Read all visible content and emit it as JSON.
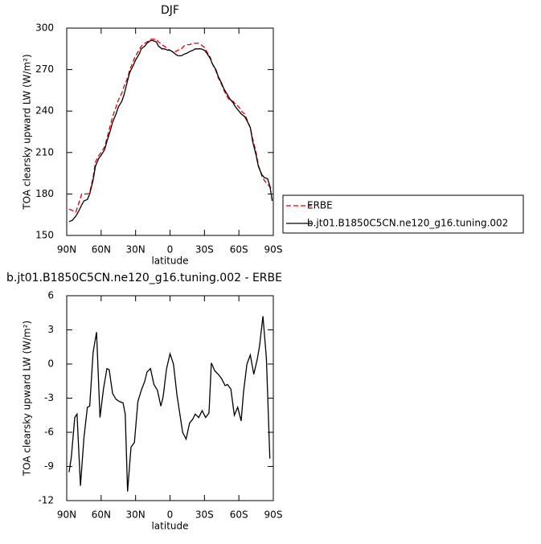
{
  "chart_data": [
    {
      "type": "line",
      "title": "DJF",
      "xlabel": "latitude",
      "ylabel": "TOA clearsky upward LW (W/m²)",
      "x": [
        88,
        85,
        82,
        80,
        77,
        75,
        72,
        70,
        67,
        65,
        62,
        60,
        57,
        55,
        52,
        50,
        47,
        45,
        42,
        40,
        37,
        35,
        32,
        30,
        27,
        25,
        22,
        20,
        17,
        15,
        12,
        10,
        7,
        5,
        2,
        0,
        -2,
        -5,
        -7,
        -10,
        -12,
        -15,
        -17,
        -20,
        -22,
        -25,
        -27,
        -30,
        -32,
        -35,
        -37,
        -40,
        -42,
        -45,
        -47,
        -50,
        -52,
        -55,
        -57,
        -60,
        -62,
        -65,
        -67,
        -70,
        -72,
        -75,
        -77,
        -80,
        -82,
        -85,
        -87,
        -89
      ],
      "series": [
        {
          "name": "ERBE",
          "color": "#e00000",
          "dash": true,
          "values": [
            169,
            168,
            167,
            172,
            180,
            180,
            180,
            181,
            192,
            203,
            208,
            210,
            214,
            220,
            230,
            236,
            243,
            248,
            253,
            258,
            264,
            270,
            276,
            280,
            284,
            287,
            289,
            290,
            292,
            292,
            292,
            290,
            288,
            287,
            285,
            284,
            283,
            283,
            284,
            285,
            287,
            288,
            288,
            289,
            289,
            289,
            288,
            286,
            283,
            279,
            274,
            269,
            264,
            259,
            255,
            250,
            248,
            247,
            245,
            243,
            240,
            238,
            234,
            228,
            220,
            210,
            201,
            193,
            190,
            187,
            185,
            184
          ]
        },
        {
          "name": "b.jt01.B1850C5CN.ne120_g16.tuning.002",
          "color": "#000000",
          "dash": false,
          "values": [
            160,
            161,
            164,
            167,
            172,
            175,
            176,
            180,
            190,
            200,
            206,
            208,
            212,
            218,
            226,
            232,
            238,
            243,
            247,
            252,
            262,
            268,
            273,
            277,
            281,
            285,
            287,
            289,
            291,
            291,
            290,
            287,
            285,
            285,
            284,
            284,
            283,
            281,
            280,
            280,
            281,
            282,
            283,
            284,
            285,
            285,
            285,
            284,
            282,
            278,
            274,
            270,
            265,
            260,
            256,
            252,
            249,
            246,
            243,
            240,
            238,
            236,
            233,
            228,
            218,
            208,
            200,
            194,
            192,
            191,
            186,
            175
          ]
        }
      ],
      "xlim": [
        90,
        -90
      ],
      "xticks": [
        {
          "value": 90,
          "label": "90N"
        },
        {
          "value": 60,
          "label": "60N"
        },
        {
          "value": 30,
          "label": "30N"
        },
        0,
        {
          "value": -30,
          "label": "30S"
        },
        {
          "value": -60,
          "label": "60S"
        },
        {
          "value": -90,
          "label": "90S"
        }
      ],
      "ylim": [
        150,
        300
      ],
      "yticks": [
        150,
        180,
        210,
        240,
        270,
        300
      ],
      "legend": "right"
    },
    {
      "type": "line",
      "title": "b.jt01.B1850C5CN.ne120_g16.tuning.002 - ERBE",
      "xlabel": "latitude",
      "ylabel": "TOA clearsky upward LW (W/m²)",
      "x": [
        88,
        86,
        83,
        81,
        78,
        75,
        72,
        70,
        67,
        64,
        61,
        58,
        55,
        53,
        50,
        47,
        44,
        41,
        39,
        37,
        34,
        31,
        28,
        25,
        22,
        20,
        17,
        14,
        11,
        8,
        6,
        3,
        0,
        -3,
        -6,
        -8,
        -11,
        -14,
        -17,
        -20,
        -22,
        -25,
        -28,
        -31,
        -34,
        -36,
        -39,
        -42,
        -45,
        -48,
        -50,
        -53,
        -56,
        -59,
        -62,
        -64,
        -67,
        -70,
        -73,
        -76,
        -78,
        -81,
        -84,
        -87
      ],
      "color": "#000000",
      "values": [
        -9.5,
        -8.2,
        -4.7,
        -4.4,
        -10.7,
        -6.5,
        -3.8,
        -3.7,
        1.0,
        2.8,
        -4.7,
        -2.2,
        -0.4,
        -0.5,
        -2.6,
        -3.1,
        -3.3,
        -3.4,
        -4.4,
        -11.2,
        -7.3,
        -6.9,
        -3.3,
        -2.3,
        -1.5,
        -0.7,
        -0.4,
        -1.8,
        -2.3,
        -3.7,
        -2.9,
        -0.4,
        0.9,
        0.0,
        -2.7,
        -4.0,
        -6.0,
        -6.6,
        -5.2,
        -4.8,
        -4.4,
        -4.7,
        -4.1,
        -4.7,
        -4.3,
        0.1,
        -0.6,
        -0.9,
        -1.3,
        -1.9,
        -1.8,
        -2.2,
        -4.5,
        -3.8,
        -5.0,
        -2.5,
        0.0,
        0.8,
        -0.9,
        0.4,
        1.6,
        4.2,
        0.5,
        -8.3
      ],
      "xlim": [
        90,
        -90
      ],
      "xticks": [
        {
          "value": 90,
          "label": "90N"
        },
        {
          "value": 60,
          "label": "60N"
        },
        {
          "value": 30,
          "label": "30N"
        },
        0,
        {
          "value": -30,
          "label": "30S"
        },
        {
          "value": -60,
          "label": "60S"
        },
        {
          "value": -90,
          "label": "90S"
        }
      ],
      "ylim": [
        -12,
        6
      ],
      "yticks": [
        -12,
        -9,
        -6,
        -3,
        0,
        3,
        6
      ]
    }
  ]
}
